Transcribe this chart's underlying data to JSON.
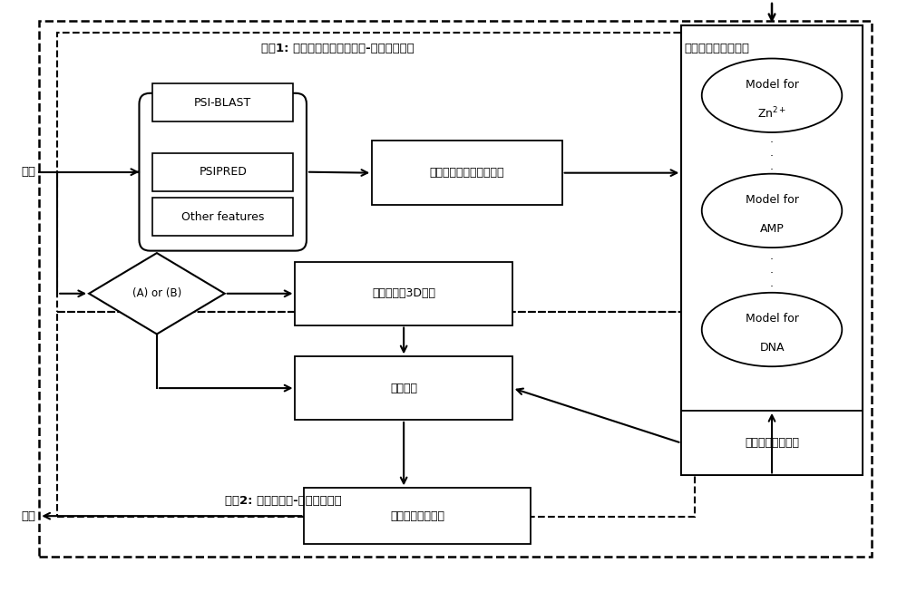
{
  "bg_color": "#ffffff",
  "fig_width": 10.0,
  "fig_height": 6.53,
  "phase1_label": "阶段1: 从序列出发预测蛋白质-配体绑定残基",
  "phase1_label2": "配体特异性预测模型",
  "phase2_label": "阶段2: 预测蛋白质-配体绑定区域",
  "request_label": "请求",
  "response_label": "响应",
  "box_psi": "PSI-BLAST",
  "box_psi2": "PSIPRED",
  "box_other": "Other features",
  "box_feature": "提取每个残基的特征向量",
  "box_3d": "从序列进行3D建模",
  "box_cluster": "空间聚类",
  "box_result_binding": "绑定残基预测结果",
  "box_final": "绑定区域预测结果",
  "diamond_label": "(A) or (B)",
  "line_color": "#000000"
}
